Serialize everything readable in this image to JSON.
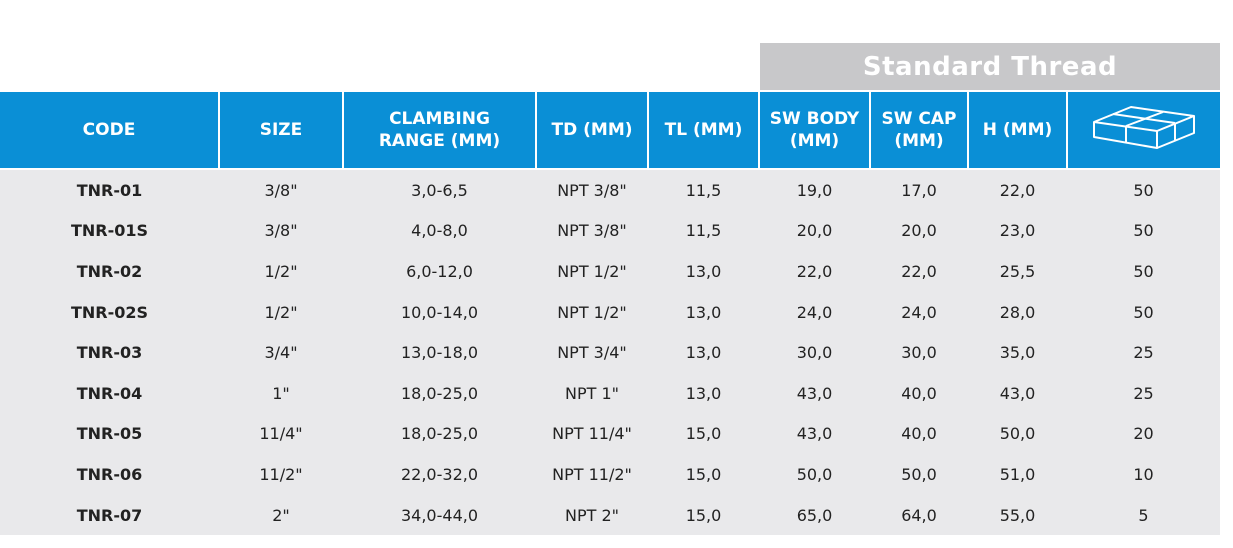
{
  "group_header": "Standard Thread",
  "columns": [
    "CODE",
    "SIZE",
    "CLAMBING RANGE (MM)",
    "TD (MM)",
    "TL (MM)",
    "SW BODY (MM)",
    "SW CAP (MM)",
    "H (MM)"
  ],
  "package_icon": "box-package-icon",
  "colors": {
    "header_blue": "#0a8fd6",
    "group_gray": "#c8c8ca",
    "row_bg": "#e9e9eb"
  },
  "rows": [
    [
      "TNR-01",
      "3/8\"",
      "3,0-6,5",
      "NPT 3/8\"",
      "11,5",
      "19,0",
      "17,0",
      "22,0",
      "50"
    ],
    [
      "TNR-01S",
      "3/8\"",
      "4,0-8,0",
      "NPT 3/8\"",
      "11,5",
      "20,0",
      "20,0",
      "23,0",
      "50"
    ],
    [
      "TNR-02",
      "1/2\"",
      "6,0-12,0",
      "NPT 1/2\"",
      "13,0",
      "22,0",
      "22,0",
      "25,5",
      "50"
    ],
    [
      "TNR-02S",
      "1/2\"",
      "10,0-14,0",
      "NPT 1/2\"",
      "13,0",
      "24,0",
      "24,0",
      "28,0",
      "50"
    ],
    [
      "TNR-03",
      "3/4\"",
      "13,0-18,0",
      "NPT 3/4\"",
      "13,0",
      "30,0",
      "30,0",
      "35,0",
      "25"
    ],
    [
      "TNR-04",
      "1\"",
      "18,0-25,0",
      "NPT 1\"",
      "13,0",
      "43,0",
      "40,0",
      "43,0",
      "25"
    ],
    [
      "TNR-05",
      "11/4\"",
      "18,0-25,0",
      "NPT 11/4\"",
      "15,0",
      "43,0",
      "40,0",
      "50,0",
      "20"
    ],
    [
      "TNR-06",
      "11/2\"",
      "22,0-32,0",
      "NPT 11/2\"",
      "15,0",
      "50,0",
      "50,0",
      "51,0",
      "10"
    ],
    [
      "TNR-07",
      "2\"",
      "34,0-44,0",
      "NPT 2\"",
      "15,0",
      "65,0",
      "64,0",
      "55,0",
      "5"
    ]
  ]
}
